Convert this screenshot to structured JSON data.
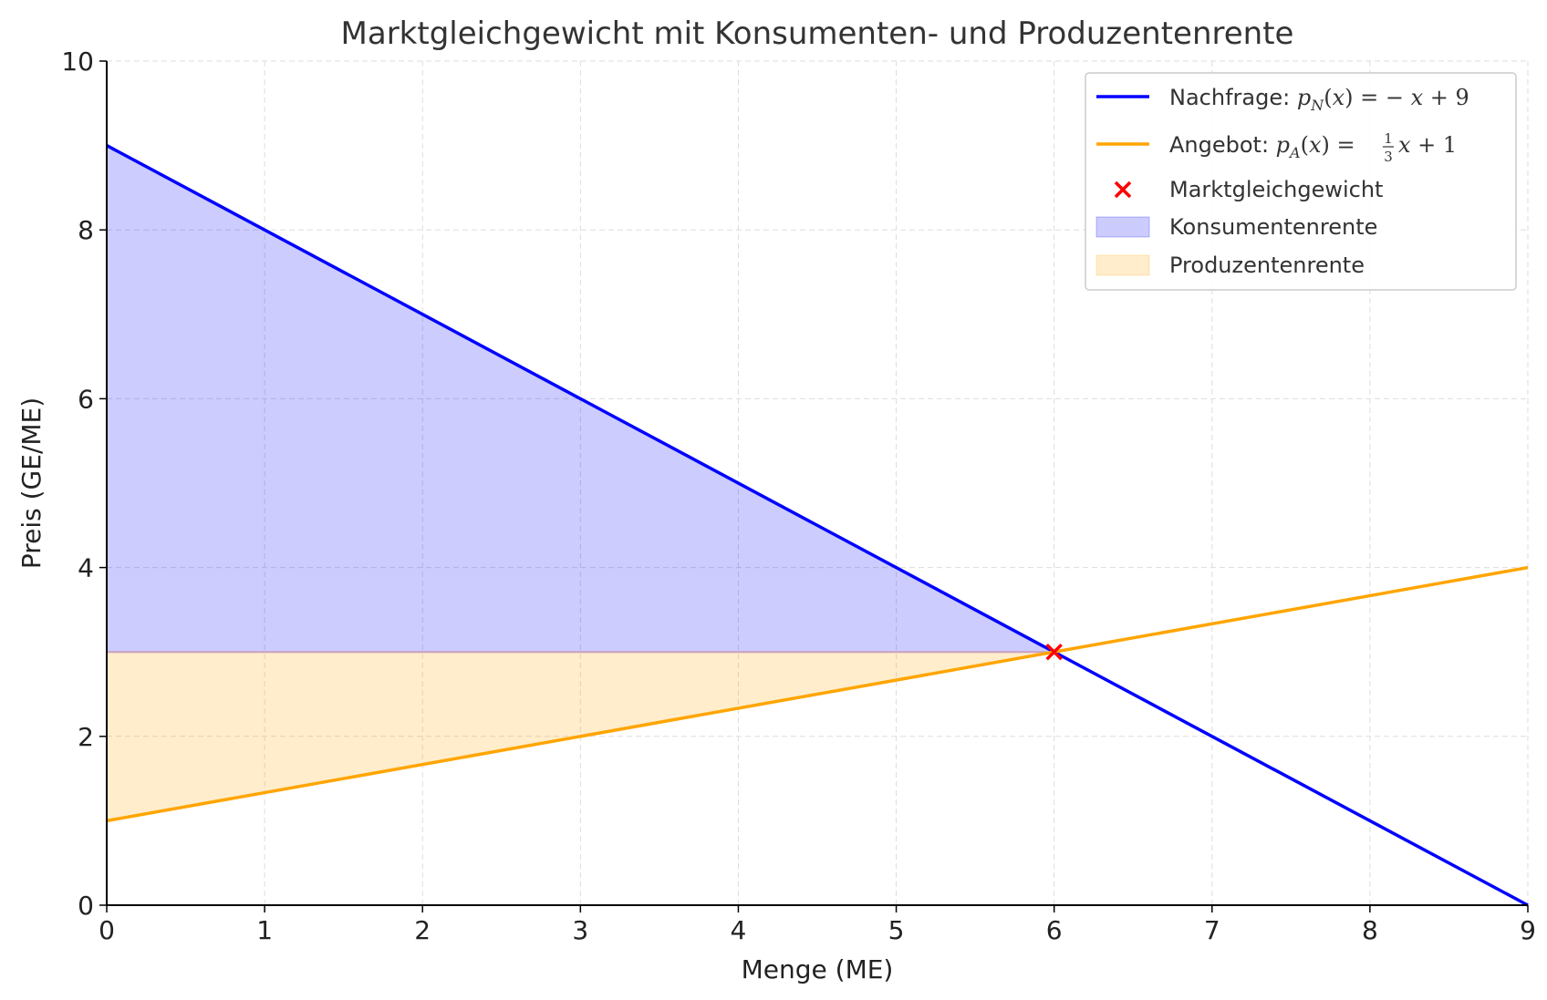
{
  "chart_data": {
    "type": "line",
    "title": "Marktgleichgewicht mit Konsumenten- und Produzentenrente",
    "xlabel": "Menge (ME)",
    "ylabel": "Preis (GE/ME)",
    "xlim": [
      0,
      9
    ],
    "ylim": [
      0,
      10
    ],
    "xticks": [
      "0",
      "1",
      "2",
      "3",
      "4",
      "5",
      "6",
      "7",
      "8",
      "9"
    ],
    "yticks": [
      "0",
      "2",
      "4",
      "6",
      "8",
      "10"
    ],
    "grid": true,
    "legend_position": "top-right",
    "series": [
      {
        "name": "Nachfrage",
        "formula_label": "Nachfrage: p_N(x) = −x + 9",
        "color": "#0000ff",
        "x": [
          0,
          9
        ],
        "y": [
          9,
          0
        ]
      },
      {
        "name": "Angebot",
        "formula_label": "Angebot: p_A(x) = 1/3 x + 1",
        "color": "#ffa500",
        "x": [
          0,
          9
        ],
        "y": [
          1,
          4
        ]
      }
    ],
    "equilibrium": {
      "name": "Marktgleichgewicht",
      "x": 6,
      "y": 3,
      "color": "#ff0000",
      "marker": "x"
    },
    "areas": [
      {
        "name": "Konsumentenrente",
        "color": "#0000ff",
        "opacity": 0.2,
        "polygon": [
          [
            0,
            9
          ],
          [
            6,
            3
          ],
          [
            0,
            3
          ]
        ]
      },
      {
        "name": "Produzentenrente",
        "color": "#ffa500",
        "opacity": 0.2,
        "polygon": [
          [
            0,
            3
          ],
          [
            6,
            3
          ],
          [
            0,
            1
          ]
        ]
      }
    ],
    "legend": {
      "demand_prefix": "Nachfrage: ",
      "supply_prefix": "Angebot: ",
      "demand_formula": {
        "p": "p",
        "sub": "N",
        "open": "(",
        "var": "x",
        "close": ")",
        "eq": " = − ",
        "var2": "x",
        "tail": " + 9"
      },
      "supply_formula": {
        "p": "p",
        "sub": "A",
        "open": "(",
        "var": "x",
        "close": ")",
        "eq": " = ",
        "frac_num": "1",
        "frac_den": "3",
        "var2": "x",
        "tail": " + 1"
      },
      "equilibrium_label": "Marktgleichgewicht",
      "consumer_label": "Konsumentenrente",
      "producer_label": "Produzentenrente"
    }
  }
}
